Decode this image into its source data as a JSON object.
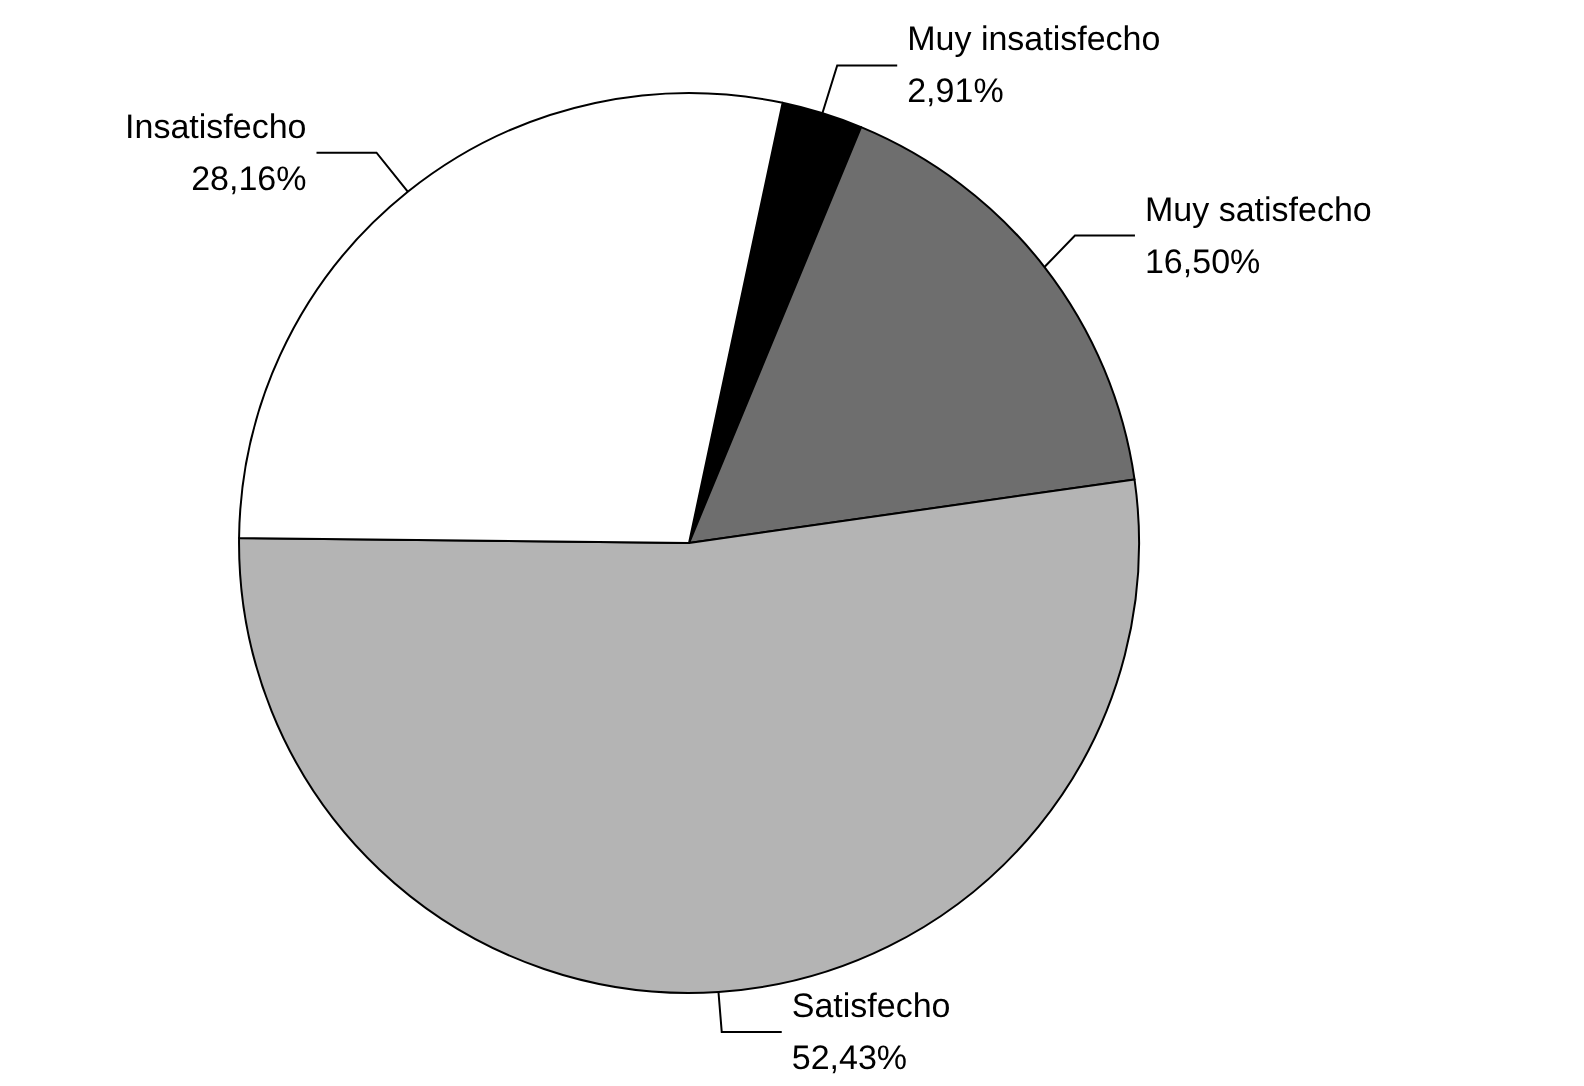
{
  "chart_data": {
    "type": "pie",
    "categories": [
      "Muy insatisfecho",
      "Muy satisfecho",
      "Satisfecho",
      "Insatisfecho"
    ],
    "values": [
      2.91,
      16.5,
      52.43,
      28.16
    ],
    "value_labels": [
      "2,91%",
      "16,50%",
      "52,43%",
      "28,16%"
    ],
    "colors": [
      "#000000",
      "#6e6e6e",
      "#b4b4b4",
      "#ffffff"
    ],
    "legend": false
  }
}
